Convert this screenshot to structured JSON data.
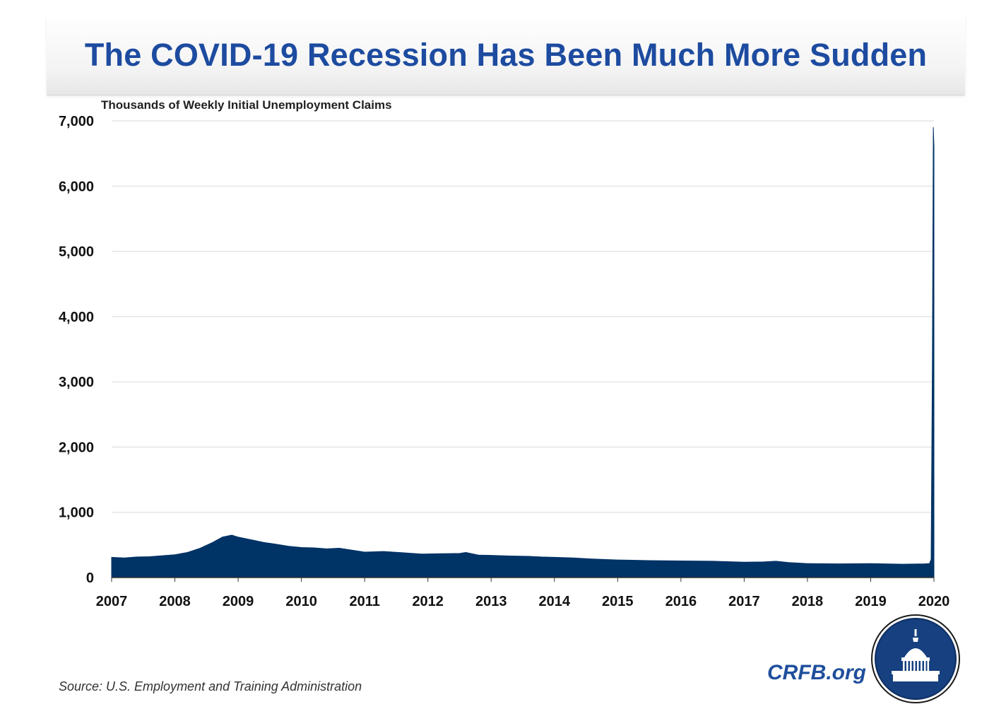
{
  "page": {
    "title": "The COVID-19 Recession Has Been Much More Sudden",
    "source": "Source: U.S. Employment and Training Administration",
    "brand": "CRFB.org"
  },
  "colors": {
    "title": "#1d4ba0",
    "area": "#003366",
    "grid": "#d9d9d9",
    "brand": "#1f4f9c",
    "logo_bg": "#16407f"
  },
  "logo": {
    "icon": "capitol-dome-icon",
    "alt": "CRFB capitol seal"
  },
  "chart_data": {
    "type": "area",
    "title": "The COVID-19 Recession Has Been Much More Sudden",
    "ylabel": "Thousands of Weekly Initial Unemployment Claims",
    "xlabel": "",
    "ylim": [
      0,
      7000
    ],
    "xlim": [
      2007,
      2020
    ],
    "y_ticks": [
      0,
      1000,
      2000,
      3000,
      4000,
      5000,
      6000,
      7000
    ],
    "y_tick_labels": [
      "0",
      "1,000",
      "2,000",
      "3,000",
      "4,000",
      "5,000",
      "6,000",
      "7,000"
    ],
    "x_ticks": [
      2007,
      2008,
      2009,
      2010,
      2011,
      2012,
      2013,
      2014,
      2015,
      2016,
      2017,
      2018,
      2019,
      2020
    ],
    "x_tick_labels": [
      "2007",
      "2008",
      "2009",
      "2010",
      "2011",
      "2012",
      "2013",
      "2014",
      "2015",
      "2016",
      "2017",
      "2018",
      "2019",
      "2020"
    ],
    "grid": "horizontal",
    "series": [
      {
        "name": "Weekly Initial Unemployment Claims (thousands)",
        "x": [
          2007.0,
          2007.2,
          2007.4,
          2007.6,
          2007.8,
          2008.0,
          2008.2,
          2008.4,
          2008.6,
          2008.75,
          2008.9,
          2009.0,
          2009.1,
          2009.25,
          2009.4,
          2009.6,
          2009.8,
          2010.0,
          2010.2,
          2010.4,
          2010.6,
          2010.8,
          2011.0,
          2011.3,
          2011.6,
          2011.9,
          2012.2,
          2012.5,
          2012.6,
          2012.8,
          2013.0,
          2013.3,
          2013.6,
          2013.8,
          2014.0,
          2014.3,
          2014.6,
          2015.0,
          2015.5,
          2016.0,
          2016.5,
          2017.0,
          2017.3,
          2017.5,
          2017.7,
          2018.0,
          2018.5,
          2019.0,
          2019.5,
          2019.85,
          2019.93,
          2019.955,
          2019.975,
          2019.99,
          2020.0
        ],
        "values": [
          310,
          300,
          315,
          320,
          335,
          350,
          385,
          450,
          540,
          620,
          650,
          620,
          600,
          570,
          540,
          510,
          480,
          460,
          455,
          440,
          450,
          420,
          390,
          400,
          380,
          360,
          365,
          370,
          385,
          345,
          340,
          330,
          325,
          315,
          310,
          300,
          285,
          270,
          260,
          255,
          250,
          235,
          240,
          250,
          230,
          215,
          210,
          215,
          205,
          210,
          215,
          280,
          3300,
          6900,
          6600
        ]
      }
    ]
  }
}
